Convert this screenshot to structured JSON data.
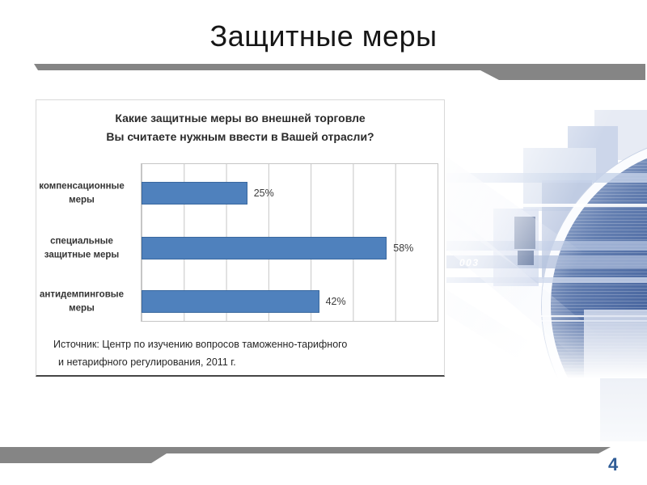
{
  "slide": {
    "title": "Защитные меры",
    "page_number": "4"
  },
  "chart_data": {
    "type": "bar",
    "orientation": "horizontal",
    "title_line1": "Какие защитные меры во внешней торговле",
    "title_line2": "Вы считаете нужным ввести в Вашей отрасли?",
    "categories": [
      "компенсационные меры",
      "специальные защитные меры",
      "антидемпинговые меры"
    ],
    "values": [
      25,
      58,
      42
    ],
    "xlim": [
      0,
      70
    ],
    "xmax": 70,
    "gridline_interval_percent": 10,
    "grid": "vertical",
    "legend": "none",
    "bar_color": "#4f81bd",
    "rows": [
      {
        "label_line1": "компенсационные",
        "label_line2": "меры",
        "value": 25,
        "value_label": "25%"
      },
      {
        "label_line1": "специальные",
        "label_line2": "защитные меры",
        "value": 58,
        "value_label": "58%"
      },
      {
        "label_line1": "антидемпинговые",
        "label_line2": "меры",
        "value": 42,
        "value_label": "42%"
      }
    ],
    "source_line1": "Источник: Центр по изучению вопросов таможенно-тарифного",
    "source_line2": "и нетарифного регулирования, 2011 г."
  },
  "decoration": {
    "watermark_text": "003",
    "swoosh_color": "#858585",
    "page_number_color": "#2f5c96",
    "globe_dark_blue": "#24457f",
    "globe_light_blue": "#8fa7cc"
  }
}
